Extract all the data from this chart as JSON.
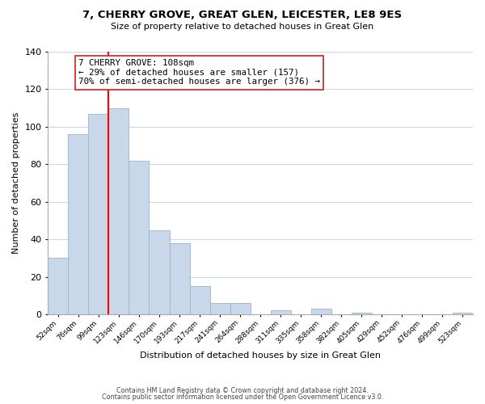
{
  "title": "7, CHERRY GROVE, GREAT GLEN, LEICESTER, LE8 9ES",
  "subtitle": "Size of property relative to detached houses in Great Glen",
  "xlabel": "Distribution of detached houses by size in Great Glen",
  "ylabel": "Number of detached properties",
  "bar_color": "#c8d8ea",
  "bar_edge_color": "#9ab4cc",
  "red_line_index": 2,
  "annotation_title": "7 CHERRY GROVE: 108sqm",
  "annotation_line1": "← 29% of detached houses are smaller (157)",
  "annotation_line2": "70% of semi-detached houses are larger (376) →",
  "footer_line1": "Contains HM Land Registry data © Crown copyright and database right 2024.",
  "footer_line2": "Contains public sector information licensed under the Open Government Licence v3.0.",
  "bin_labels": [
    "52sqm",
    "76sqm",
    "99sqm",
    "123sqm",
    "146sqm",
    "170sqm",
    "193sqm",
    "217sqm",
    "241sqm",
    "264sqm",
    "288sqm",
    "311sqm",
    "335sqm",
    "358sqm",
    "382sqm",
    "405sqm",
    "429sqm",
    "452sqm",
    "476sqm",
    "499sqm",
    "523sqm"
  ],
  "bar_heights": [
    30,
    96,
    107,
    110,
    82,
    45,
    38,
    15,
    6,
    6,
    0,
    2,
    0,
    3,
    0,
    1,
    0,
    0,
    0,
    0,
    1
  ],
  "ylim": [
    0,
    140
  ],
  "yticks": [
    0,
    20,
    40,
    60,
    80,
    100,
    120,
    140
  ],
  "background_color": "#ffffff",
  "grid_color": "#ccd8e4"
}
